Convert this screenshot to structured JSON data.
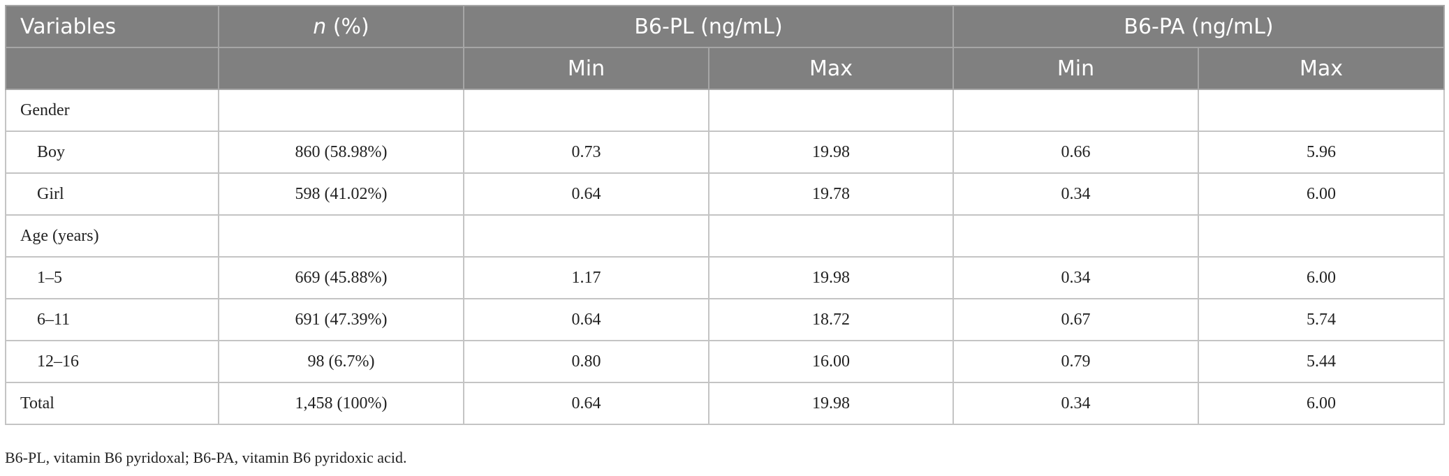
{
  "table": {
    "header": {
      "variables": "Variables",
      "n_symbol": "n",
      "n_unit": " (%)",
      "groups": [
        "B6-PL (ng/mL)",
        "B6-PA (ng/mL)"
      ],
      "subcolumns": [
        "Min",
        "Max",
        "Min",
        "Max"
      ]
    },
    "rows": [
      {
        "group": "Gender"
      },
      {
        "indent": true,
        "cells": [
          "Boy",
          "860 (58.98%)",
          "0.73",
          "19.98",
          "0.66",
          "5.96"
        ]
      },
      {
        "indent": true,
        "cells": [
          "Girl",
          "598 (41.02%)",
          "0.64",
          "19.78",
          "0.34",
          "6.00"
        ]
      },
      {
        "group": "Age (years)"
      },
      {
        "indent": true,
        "cells": [
          "1–5",
          "669 (45.88%)",
          "1.17",
          "19.98",
          "0.34",
          "6.00"
        ]
      },
      {
        "indent": true,
        "cells": [
          "6–11",
          "691 (47.39%)",
          "0.64",
          "18.72",
          "0.67",
          "5.74"
        ]
      },
      {
        "indent": true,
        "cells": [
          "12–16",
          "98 (6.7%)",
          "0.80",
          "16.00",
          "0.79",
          "5.44"
        ]
      },
      {
        "indent": false,
        "cells": [
          "Total",
          "1,458 (100%)",
          "0.64",
          "19.98",
          "0.34",
          "6.00"
        ]
      }
    ],
    "footnote": "B6-PL, vitamin B6 pyridoxal; B6-PA, vitamin B6 pyridoxic acid."
  }
}
